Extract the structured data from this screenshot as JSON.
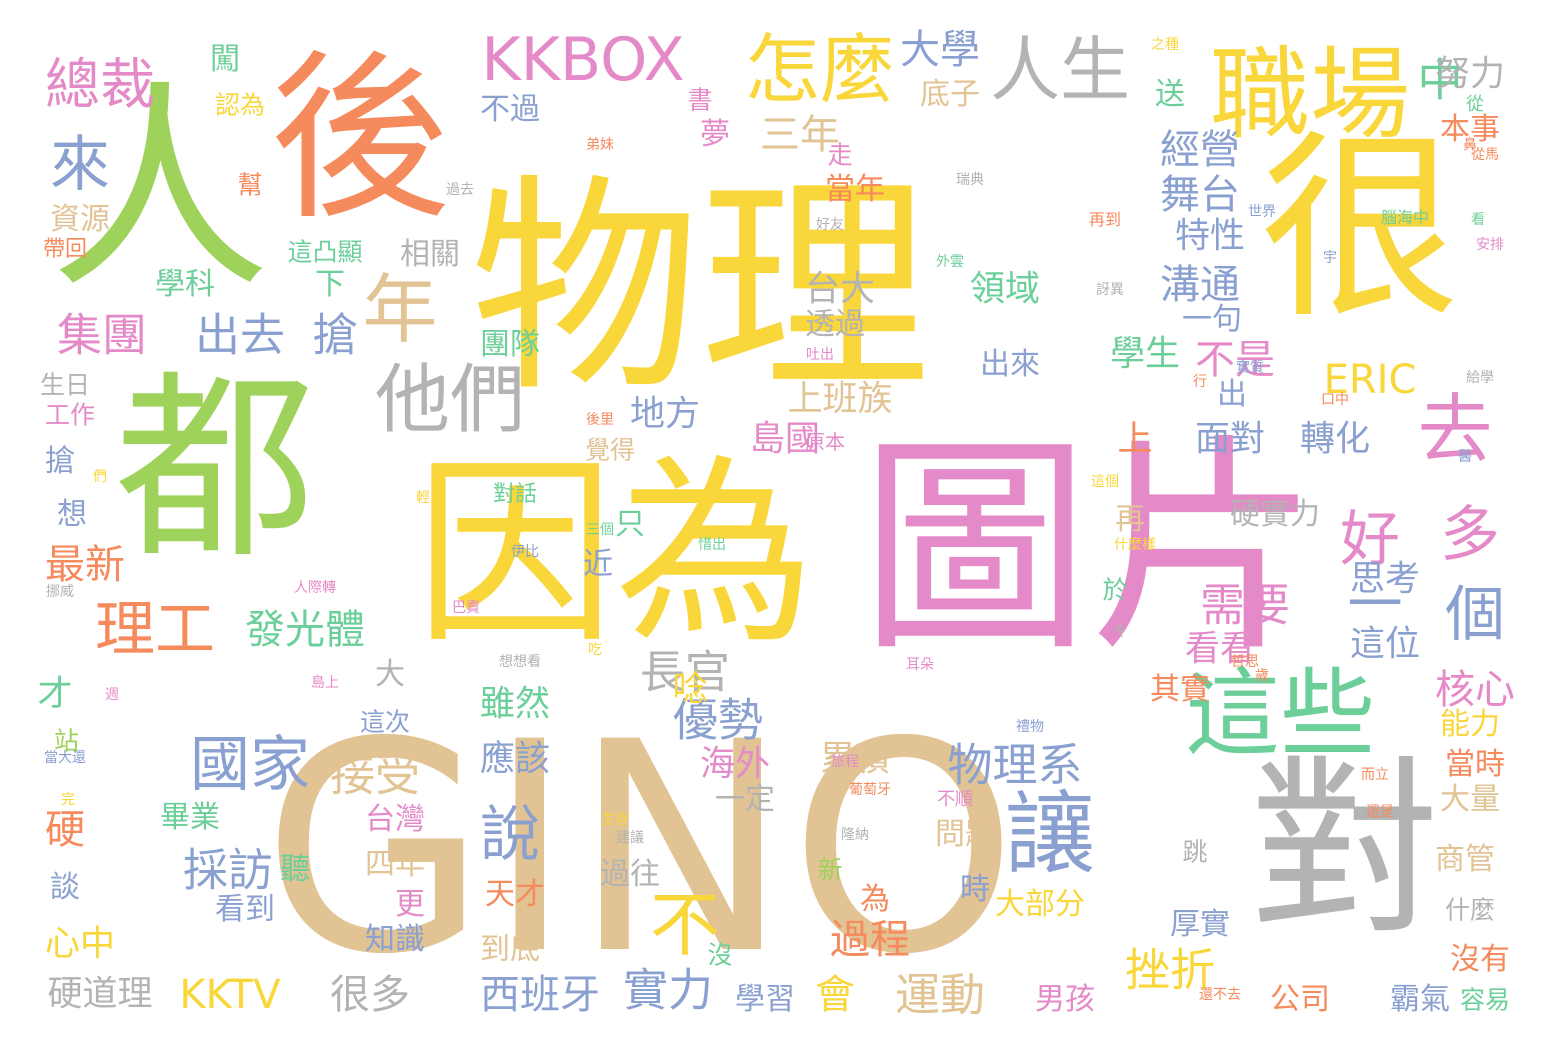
{
  "palette": {
    "yellow": "#f9d63a",
    "green": "#9ed25a",
    "orange": "#f58a5c",
    "tan": "#e2c394",
    "pink": "#e58ac8",
    "blue": "#8aa0d0",
    "gray": "#b3b3b3",
    "teal": "#6ccf9a"
  },
  "words": [
    {
      "text": "物理",
      "color": "yellow"
    },
    {
      "text": "圖片",
      "color": "pink"
    },
    {
      "text": "因為",
      "color": "yellow"
    },
    {
      "text": "GINO",
      "color": "tan"
    },
    {
      "text": "人",
      "color": "green"
    },
    {
      "text": "都",
      "color": "green"
    },
    {
      "text": "後",
      "color": "orange"
    },
    {
      "text": "很",
      "color": "yellow"
    },
    {
      "text": "對",
      "color": "gray"
    },
    {
      "text": "職場",
      "color": "yellow"
    },
    {
      "text": "這些",
      "color": "teal"
    },
    {
      "text": "讓",
      "color": "blue"
    },
    {
      "text": "他們",
      "color": "gray"
    },
    {
      "text": "怎麼",
      "color": "yellow"
    },
    {
      "text": "人生",
      "color": "gray"
    },
    {
      "text": "KKBOX",
      "color": "pink"
    },
    {
      "text": "總裁",
      "color": "pink"
    },
    {
      "text": "來",
      "color": "blue"
    },
    {
      "text": "年",
      "color": "tan"
    },
    {
      "text": "去",
      "color": "pink"
    },
    {
      "text": "好",
      "color": "pink"
    },
    {
      "text": "多",
      "color": "pink"
    },
    {
      "text": "個",
      "color": "blue"
    },
    {
      "text": "一",
      "color": "blue"
    },
    {
      "text": "國家",
      "color": "blue"
    },
    {
      "text": "理工",
      "color": "orange"
    },
    {
      "text": "不",
      "color": "yellow"
    },
    {
      "text": "說",
      "color": "blue"
    },
    {
      "text": "物理系",
      "color": "blue"
    },
    {
      "text": "優勢",
      "color": "blue"
    },
    {
      "text": "接受",
      "color": "tan"
    },
    {
      "text": "採訪",
      "color": "blue"
    },
    {
      "text": "實力",
      "color": "blue"
    },
    {
      "text": "挫折",
      "color": "yellow"
    },
    {
      "text": "需要",
      "color": "pink"
    },
    {
      "text": "集團",
      "color": "pink"
    },
    {
      "text": "出去",
      "color": "blue"
    },
    {
      "text": "搶",
      "color": "blue"
    },
    {
      "text": "大學",
      "color": "blue"
    },
    {
      "text": "三年",
      "color": "tan"
    },
    {
      "text": "經營",
      "color": "blue"
    },
    {
      "text": "舞台",
      "color": "blue"
    },
    {
      "text": "特性",
      "color": "blue"
    },
    {
      "text": "溝通",
      "color": "blue"
    },
    {
      "text": "一句",
      "color": "blue"
    },
    {
      "text": "不是",
      "color": "pink"
    },
    {
      "text": "學生",
      "color": "teal"
    },
    {
      "text": "ERIC",
      "color": "yellow"
    },
    {
      "text": "中",
      "color": "teal"
    },
    {
      "text": "努力",
      "color": "gray"
    },
    {
      "text": "發光體",
      "color": "teal"
    },
    {
      "text": "長官",
      "color": "gray"
    },
    {
      "text": "島國",
      "color": "pink"
    },
    {
      "text": "地方",
      "color": "blue"
    },
    {
      "text": "上班族",
      "color": "tan"
    },
    {
      "text": "台大",
      "color": "gray"
    },
    {
      "text": "透過",
      "color": "gray"
    },
    {
      "text": "領域",
      "color": "teal"
    },
    {
      "text": "出來",
      "color": "blue"
    },
    {
      "text": "面對",
      "color": "blue"
    },
    {
      "text": "轉化",
      "color": "blue"
    },
    {
      "text": "硬實力",
      "color": "gray"
    },
    {
      "text": "思考",
      "color": "blue"
    },
    {
      "text": "這位",
      "color": "blue"
    },
    {
      "text": "看看",
      "color": "pink"
    },
    {
      "text": "核心",
      "color": "pink"
    },
    {
      "text": "能力",
      "color": "yellow"
    },
    {
      "text": "其實",
      "color": "orange"
    },
    {
      "text": "雖然",
      "color": "teal"
    },
    {
      "text": "應該",
      "color": "blue"
    },
    {
      "text": "累積",
      "color": "tan"
    },
    {
      "text": "唸",
      "color": "yellow"
    },
    {
      "text": "海外",
      "color": "pink"
    },
    {
      "text": "一定",
      "color": "gray"
    },
    {
      "text": "過程",
      "color": "orange"
    },
    {
      "text": "運動",
      "color": "tan"
    },
    {
      "text": "會",
      "color": "yellow"
    },
    {
      "text": "西班牙",
      "color": "blue"
    },
    {
      "text": "很多",
      "color": "gray"
    },
    {
      "text": "KKTV",
      "color": "yellow"
    },
    {
      "text": "硬道理",
      "color": "gray"
    },
    {
      "text": "最新",
      "color": "orange"
    },
    {
      "text": "心中",
      "color": "yellow"
    },
    {
      "text": "硬",
      "color": "orange"
    },
    {
      "text": "畢業",
      "color": "teal"
    },
    {
      "text": "台灣",
      "color": "pink"
    },
    {
      "text": "四年",
      "color": "tan"
    },
    {
      "text": "知識",
      "color": "blue"
    },
    {
      "text": "看到",
      "color": "blue"
    },
    {
      "text": "天才",
      "color": "orange"
    },
    {
      "text": "到底",
      "color": "tan"
    },
    {
      "text": "大部分",
      "color": "yellow"
    },
    {
      "text": "問題",
      "color": "tan"
    },
    {
      "text": "過往",
      "color": "gray"
    },
    {
      "text": "厚實",
      "color": "blue"
    },
    {
      "text": "公司",
      "color": "orange"
    },
    {
      "text": "男孩",
      "color": "pink"
    },
    {
      "text": "學習",
      "color": "blue"
    },
    {
      "text": "沒有",
      "color": "orange"
    },
    {
      "text": "霸氣",
      "color": "blue"
    },
    {
      "text": "容易",
      "color": "teal"
    },
    {
      "text": "商管",
      "color": "tan"
    },
    {
      "text": "大量",
      "color": "tan"
    },
    {
      "text": "當時",
      "color": "orange"
    },
    {
      "text": "本事",
      "color": "orange"
    },
    {
      "text": "資源",
      "color": "tan"
    },
    {
      "text": "學科",
      "color": "teal"
    },
    {
      "text": "相關",
      "color": "gray"
    },
    {
      "text": "團隊",
      "color": "teal"
    },
    {
      "text": "認為",
      "color": "yellow"
    },
    {
      "text": "闖",
      "color": "teal"
    },
    {
      "text": "不過",
      "color": "blue"
    },
    {
      "text": "底子",
      "color": "tan"
    },
    {
      "text": "夢",
      "color": "pink"
    },
    {
      "text": "送",
      "color": "teal"
    },
    {
      "text": "當年",
      "color": "orange"
    },
    {
      "text": "生日",
      "color": "gray"
    },
    {
      "text": "工作",
      "color": "pink"
    },
    {
      "text": "搶",
      "color": "blue"
    },
    {
      "text": "想",
      "color": "blue"
    },
    {
      "text": "才",
      "color": "teal"
    },
    {
      "text": "談",
      "color": "blue"
    },
    {
      "text": "更",
      "color": "pink"
    },
    {
      "text": "聽",
      "color": "teal"
    },
    {
      "text": "時",
      "color": "blue"
    },
    {
      "text": "新",
      "color": "green"
    },
    {
      "text": "為",
      "color": "orange"
    },
    {
      "text": "什麼",
      "color": "gray"
    },
    {
      "text": "跳",
      "color": "gray"
    },
    {
      "text": "再",
      "color": "tan"
    },
    {
      "text": "於",
      "color": "teal"
    },
    {
      "text": "近",
      "color": "blue"
    },
    {
      "text": "只",
      "color": "teal"
    },
    {
      "text": "上",
      "color": "orange"
    },
    {
      "text": "出",
      "color": "blue"
    },
    {
      "text": "大",
      "color": "gray"
    },
    {
      "text": "沒",
      "color": "teal"
    },
    {
      "text": "下",
      "color": "teal"
    },
    {
      "text": "走",
      "color": "pink"
    },
    {
      "text": "這次",
      "color": "blue"
    },
    {
      "text": "這凸顯",
      "color": "teal"
    },
    {
      "text": "帶回",
      "color": "orange"
    },
    {
      "text": "覺得",
      "color": "tan"
    },
    {
      "text": "原本",
      "color": "pink"
    },
    {
      "text": "書",
      "color": "pink"
    },
    {
      "text": "從",
      "color": "teal"
    },
    {
      "text": "幫",
      "color": "orange"
    },
    {
      "text": "站",
      "color": "green"
    },
    {
      "text": "對話",
      "color": "teal"
    },
    {
      "text": "弟妹",
      "color": "orange"
    },
    {
      "text": "過去",
      "color": "gray"
    },
    {
      "text": "瑞典",
      "color": "gray"
    },
    {
      "text": "世界",
      "color": "blue"
    },
    {
      "text": "再到",
      "color": "orange"
    },
    {
      "text": "腦海中",
      "color": "teal"
    },
    {
      "text": "好友",
      "color": "gray"
    },
    {
      "text": "外雲",
      "color": "teal"
    },
    {
      "text": "訝異",
      "color": "gray"
    },
    {
      "text": "吐出",
      "color": "pink"
    },
    {
      "text": "行",
      "color": "orange"
    },
    {
      "text": "實質",
      "color": "blue"
    },
    {
      "text": "口中",
      "color": "orange"
    },
    {
      "text": "給學",
      "color": "gray"
    },
    {
      "text": "從馬",
      "color": "orange"
    },
    {
      "text": "安排",
      "color": "pink"
    },
    {
      "text": "宇",
      "color": "blue"
    },
    {
      "text": "之種",
      "color": "yellow"
    },
    {
      "text": "看",
      "color": "teal"
    },
    {
      "text": "伊比",
      "color": "blue"
    },
    {
      "text": "惜出",
      "color": "teal"
    },
    {
      "text": "三個",
      "color": "teal"
    },
    {
      "text": "人際轉",
      "color": "pink"
    },
    {
      "text": "巴賣",
      "color": "pink"
    },
    {
      "text": "想想看",
      "color": "gray"
    },
    {
      "text": "耳朵",
      "color": "pink"
    },
    {
      "text": "什麼樣",
      "color": "yellow"
    },
    {
      "text": "生存",
      "color": "yellow"
    },
    {
      "text": "建議",
      "color": "gray"
    },
    {
      "text": "隆納",
      "color": "gray"
    },
    {
      "text": "葡萄牙",
      "color": "orange"
    },
    {
      "text": "旅程",
      "color": "pink"
    },
    {
      "text": "不順",
      "color": "pink"
    },
    {
      "text": "禮物",
      "color": "blue"
    },
    {
      "text": "而立",
      "color": "orange"
    },
    {
      "text": "還是",
      "color": "orange"
    },
    {
      "text": "還不去",
      "color": "orange"
    },
    {
      "text": "當大還",
      "color": "blue"
    },
    {
      "text": "島上",
      "color": "pink"
    },
    {
      "text": "挪威",
      "color": "gray"
    },
    {
      "text": "後里",
      "color": "orange"
    },
    {
      "text": "輕人",
      "color": "yellow"
    },
    {
      "text": "這個",
      "color": "yellow"
    },
    {
      "text": "醫",
      "color": "blue"
    },
    {
      "text": "令",
      "color": "gray"
    },
    {
      "text": "哲思",
      "color": "orange"
    },
    {
      "text": "歲",
      "color": "orange"
    },
    {
      "text": "吃",
      "color": "yellow"
    },
    {
      "text": "完",
      "color": "yellow"
    },
    {
      "text": "們",
      "color": "yellow"
    },
    {
      "text": "週",
      "color": "pink"
    },
    {
      "text": "鼻",
      "color": "orange"
    }
  ]
}
